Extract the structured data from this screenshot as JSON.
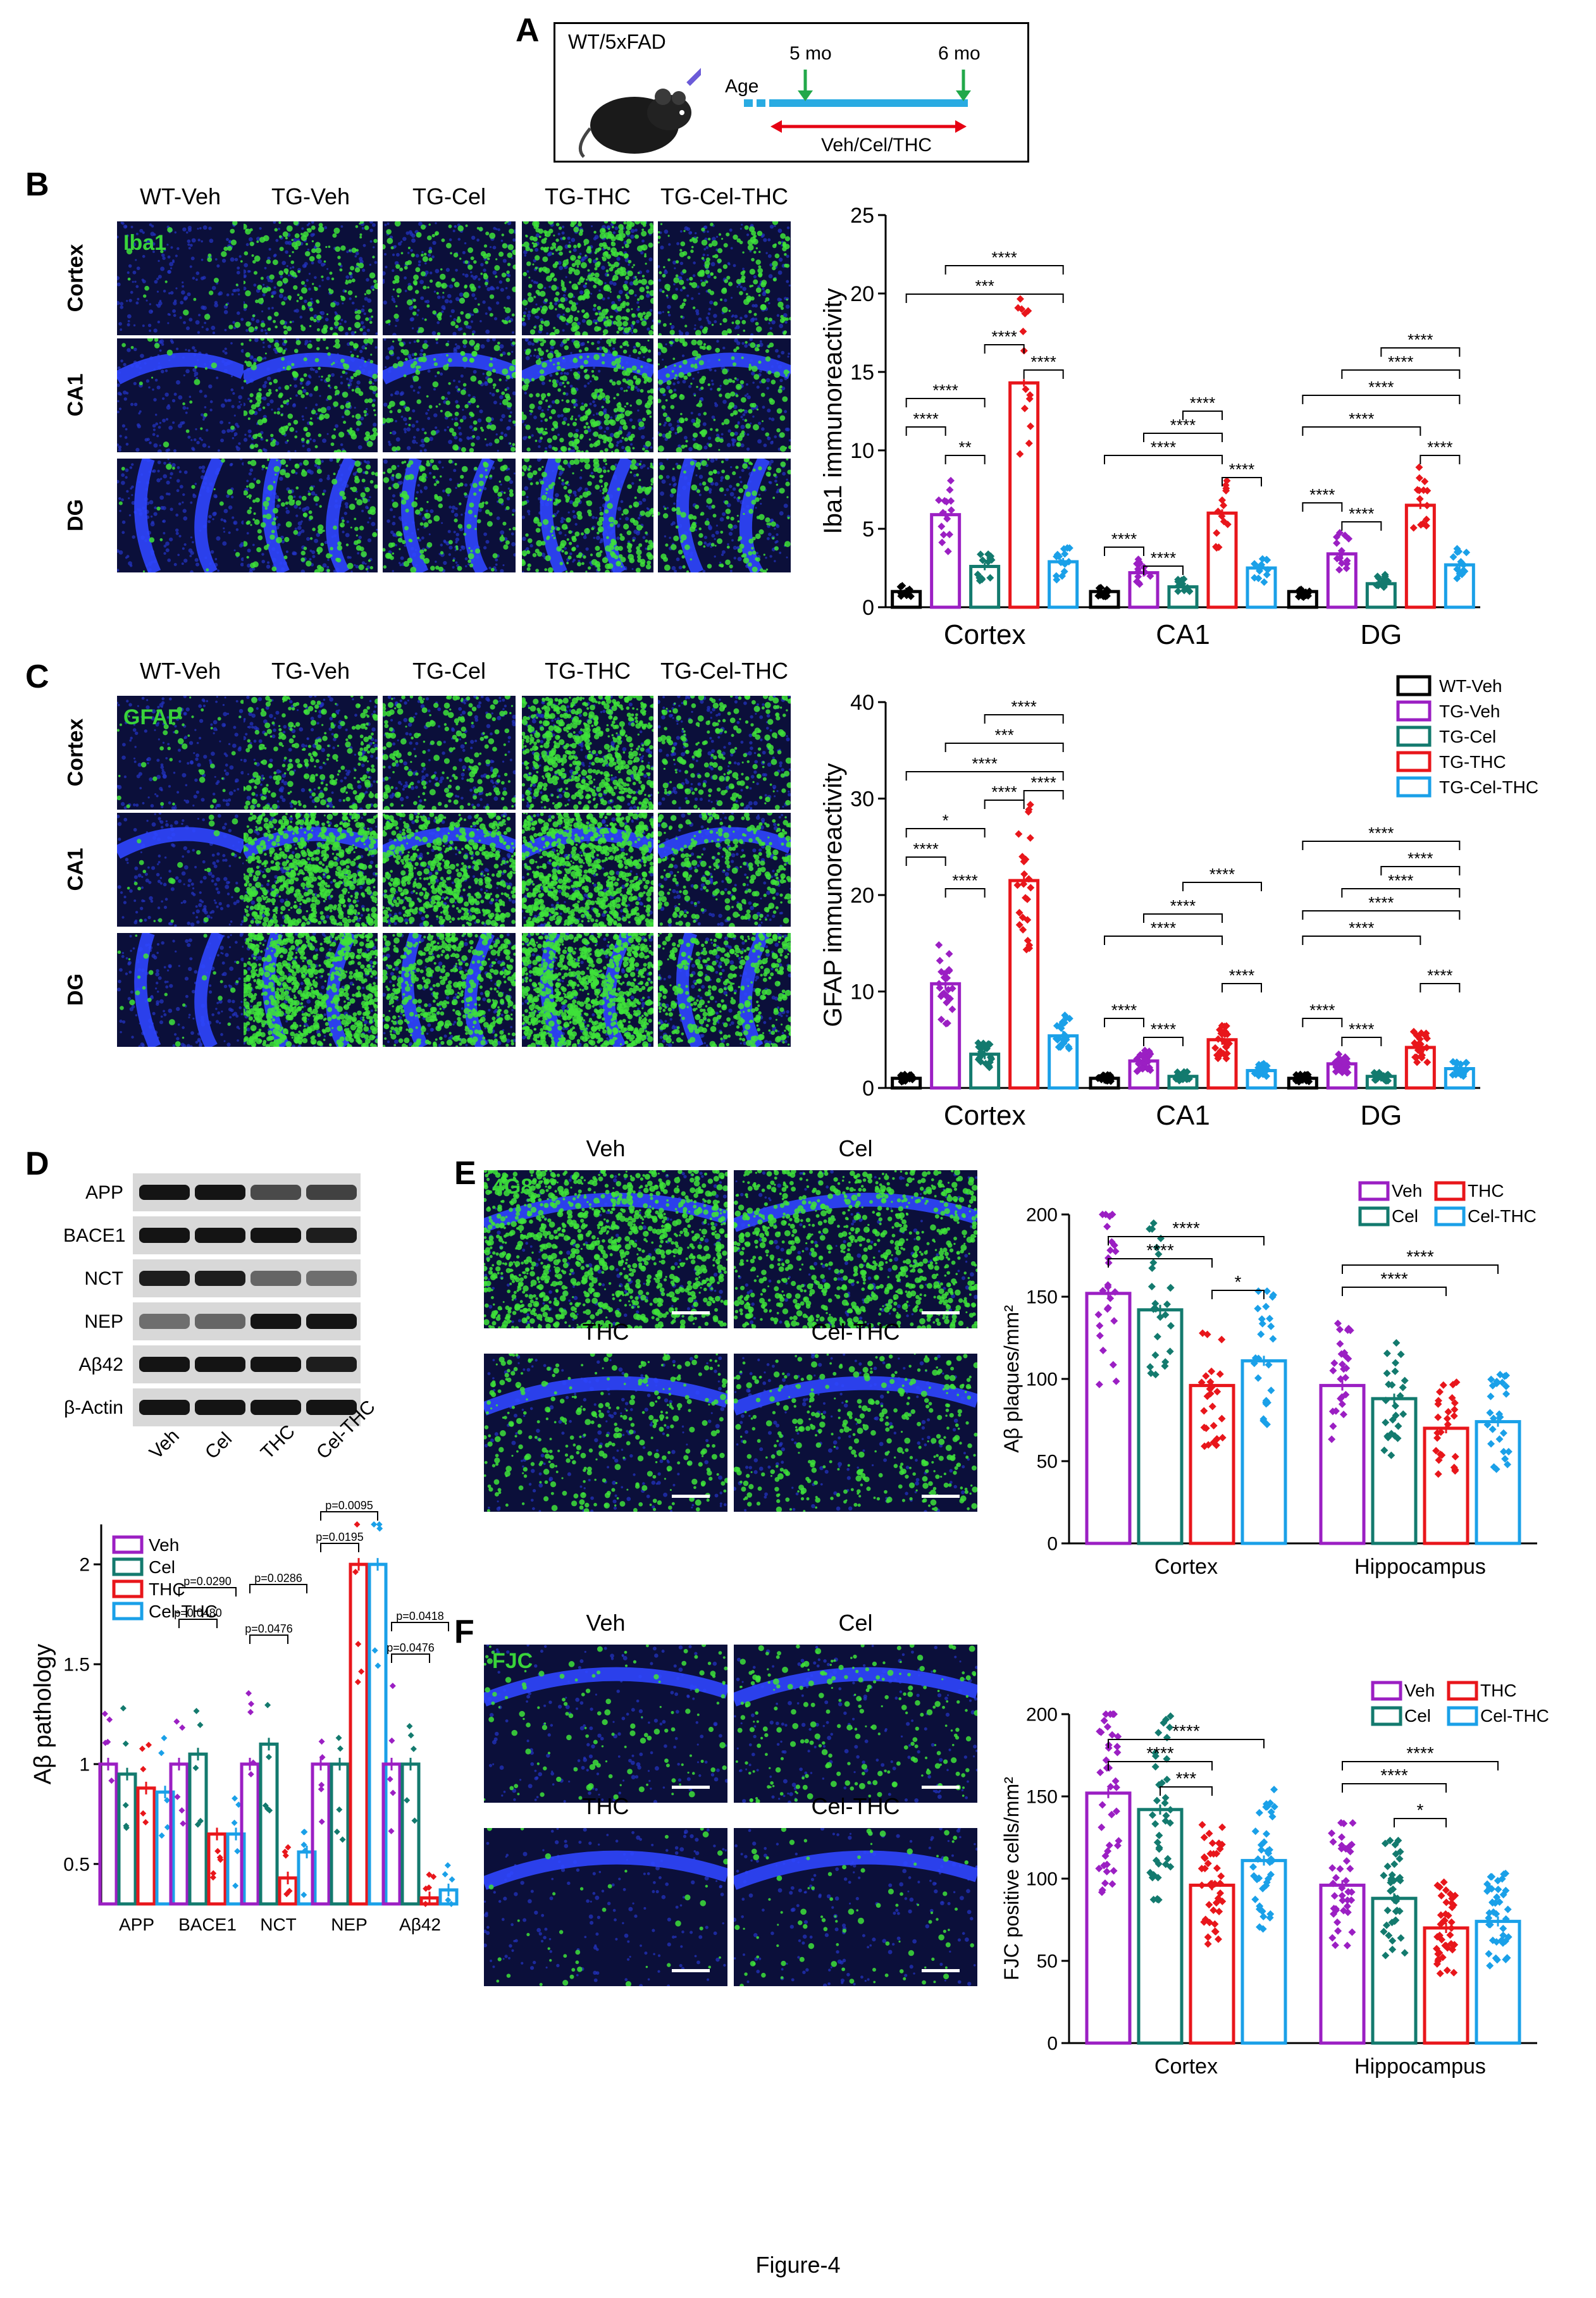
{
  "figure_caption": "Figure-4",
  "panel_letters": {
    "A": "A",
    "B": "B",
    "C": "C",
    "D": "D",
    "E": "E",
    "F": "F"
  },
  "panelA": {
    "mouse_label": "WT/5xFAD",
    "age_label": "Age",
    "start_label": "5 mo",
    "end_label": "6 mo",
    "treatment_label": "Veh/Cel/THC",
    "colors": {
      "timeline": "#29abe2",
      "arrow_down": "#22a84a",
      "treatment_arrow": "#e60012"
    }
  },
  "micrograph_panels": {
    "B": {
      "columns": [
        "WT-Veh",
        "TG-Veh",
        "TG-Cel",
        "TG-THC",
        "TG-Cel-THC"
      ],
      "rows": [
        "Cortex",
        "CA1",
        "DG"
      ],
      "stain": "Iba1"
    },
    "C": {
      "columns": [
        "WT-Veh",
        "TG-Veh",
        "TG-Cel",
        "TG-THC",
        "TG-Cel-THC"
      ],
      "rows": [
        "Cortex",
        "CA1",
        "DG"
      ],
      "stain": "GFAP"
    },
    "E": {
      "stain": "4G8",
      "labels": [
        "Veh",
        "Cel",
        "THC",
        "Cel-THC"
      ]
    },
    "F": {
      "stain": "FJC",
      "labels": [
        "Veh",
        "Cel",
        "THC",
        "Cel-THC"
      ]
    }
  },
  "western_blot": {
    "rows": [
      "APP",
      "BACE1",
      "NCT",
      "NEP",
      "Aβ42",
      "β-Actin"
    ],
    "lanes": [
      "Veh",
      "Cel",
      "THC",
      "Cel-THC"
    ]
  },
  "colors": {
    "WT-Veh": "#000000",
    "TG-Veh": "#9b1fc3",
    "TG-Cel": "#137a6e",
    "TG-THC": "#e8161b",
    "TG-Cel-THC": "#1aa0e8"
  },
  "chart_data": [
    {
      "id": "B",
      "type": "bar",
      "title": "",
      "xlabel": "",
      "ylabel": "Iba1 immunoreactivity",
      "ylim": [
        0,
        25
      ],
      "yticks": [
        0,
        5,
        10,
        15,
        20,
        25
      ],
      "categories": [
        "Cortex",
        "CA1",
        "DG"
      ],
      "series": [
        {
          "name": "WT-Veh",
          "values": [
            1.0,
            1.0,
            1.0
          ]
        },
        {
          "name": "TG-Veh",
          "values": [
            5.9,
            2.2,
            3.4
          ]
        },
        {
          "name": "TG-Cel",
          "values": [
            2.6,
            1.3,
            1.5
          ]
        },
        {
          "name": "TG-THC",
          "values": [
            14.3,
            6.0,
            6.5
          ]
        },
        {
          "name": "TG-Cel-THC",
          "values": [
            2.9,
            2.5,
            2.7
          ]
        }
      ],
      "significance": [
        "****",
        "****",
        "**",
        "****",
        "***",
        "****",
        "****",
        "****",
        "****",
        "****",
        "****",
        "****",
        "****",
        "****",
        "****",
        "****",
        "****",
        "****",
        "****",
        "****"
      ],
      "grid": false,
      "legend": ""
    },
    {
      "id": "C",
      "type": "bar",
      "title": "",
      "xlabel": "",
      "ylabel": "GFAP immunoreactivity",
      "ylim": [
        0,
        40
      ],
      "yticks": [
        0,
        10,
        20,
        30,
        40
      ],
      "categories": [
        "Cortex",
        "CA1",
        "DG"
      ],
      "series": [
        {
          "name": "WT-Veh",
          "values": [
            1.0,
            1.0,
            1.0
          ]
        },
        {
          "name": "TG-Veh",
          "values": [
            10.8,
            2.8,
            2.5
          ]
        },
        {
          "name": "TG-Cel",
          "values": [
            3.5,
            1.2,
            1.2
          ]
        },
        {
          "name": "TG-THC",
          "values": [
            21.5,
            5.0,
            4.2
          ]
        },
        {
          "name": "TG-Cel-THC",
          "values": [
            5.4,
            1.8,
            2.0
          ]
        }
      ],
      "significance": [
        "****",
        "****",
        "*",
        "****",
        "****",
        "****",
        "***",
        "****",
        "****",
        "****",
        "****",
        "****",
        "****",
        "****",
        "****",
        "****",
        "****",
        "****",
        "****",
        "****",
        "****",
        "****"
      ],
      "grid": false,
      "legend": "right"
    },
    {
      "id": "D",
      "type": "bar",
      "title": "",
      "xlabel": "",
      "ylabel": "Aβ pathology",
      "ylim": [
        0.3,
        2.2
      ],
      "yticks": [
        0.5,
        1.0,
        1.5,
        2.0
      ],
      "categories": [
        "APP",
        "BACE1",
        "NCT",
        "NEP",
        "Aβ42"
      ],
      "series": [
        {
          "name": "Veh",
          "values": [
            1.0,
            1.0,
            1.0,
            1.0,
            1.0
          ]
        },
        {
          "name": "Cel",
          "values": [
            0.95,
            1.05,
            1.1,
            1.0,
            1.0
          ]
        },
        {
          "name": "THC",
          "values": [
            0.88,
            0.65,
            0.43,
            2.0,
            0.33
          ]
        },
        {
          "name": "Cel-THC",
          "values": [
            0.86,
            0.65,
            0.56,
            2.0,
            0.37
          ]
        }
      ],
      "annotations": [
        "p=0.0480",
        "p=0.0290",
        "p=0.0476",
        "p=0.0286",
        "p=0.0195",
        "p=0.0095",
        "p=0.0476",
        "p=0.0418"
      ],
      "grid": false,
      "legend": "top-left"
    },
    {
      "id": "E",
      "type": "bar",
      "title": "",
      "xlabel": "",
      "ylabel": "Aβ plaques/mm²",
      "ylim": [
        0,
        200
      ],
      "yticks": [
        0,
        50,
        100,
        150,
        200
      ],
      "categories": [
        "Cortex",
        "Hippocampus"
      ],
      "series": [
        {
          "name": "Veh",
          "values": [
            152,
            96
          ]
        },
        {
          "name": "Cel",
          "values": [
            142,
            88
          ]
        },
        {
          "name": "THC",
          "values": [
            96,
            70
          ]
        },
        {
          "name": "Cel-THC",
          "values": [
            111,
            74
          ]
        }
      ],
      "significance": [
        "****",
        "****",
        "*",
        "****",
        "****"
      ],
      "grid": false,
      "legend": "top-right"
    },
    {
      "id": "F",
      "type": "bar",
      "title": "",
      "xlabel": "",
      "ylabel": "FJC positive cells/mm²",
      "ylim": [
        0,
        200
      ],
      "yticks": [
        0,
        50,
        100,
        150,
        200
      ],
      "categories": [
        "Cortex",
        "Hippocampus"
      ],
      "series": [
        {
          "name": "Veh",
          "values": [
            152,
            96
          ]
        },
        {
          "name": "Cel",
          "values": [
            142,
            88
          ]
        },
        {
          "name": "THC",
          "values": [
            96,
            70
          ]
        },
        {
          "name": "Cel-THC",
          "values": [
            111,
            74
          ]
        }
      ],
      "significance": [
        "****",
        "****",
        "***",
        "****",
        "****",
        "*"
      ],
      "grid": false,
      "legend": "top-right"
    }
  ]
}
